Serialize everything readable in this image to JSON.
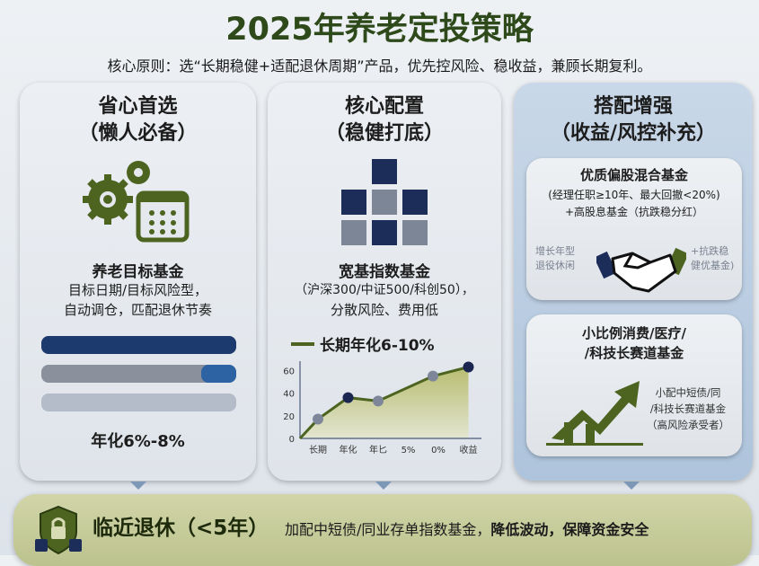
{
  "title": "2025年养老定投策略",
  "subtitle": "核心原则：选“长期稳健+适配退休周期”产品，优先控风险、稳收益，兼顾长期复利。",
  "panels": [
    {
      "heading": "省心首选",
      "subheading": "（懒人必备）",
      "name": "养老目标基金",
      "desc1": "目标日期/目标风险型，",
      "desc2": "自动调仓，匹配退休节奏",
      "bars": [
        {
          "fill": 1.0,
          "color": "#1d3a6e"
        },
        {
          "fill": 0.82,
          "color": "#2e63a3"
        },
        {
          "fill": 0,
          "color": "#b3bcc8"
        }
      ],
      "return": "年化6%-8%",
      "icons": [
        "gear-icon",
        "calendar-icon"
      ]
    },
    {
      "heading": "核心配置",
      "subheading": "（稳健打底）",
      "name": "宽基指数基金",
      "desc1": "（沪深300/中证500/科创50），",
      "desc2": "分散风险、费用低",
      "legend": "长期年化6-10%"
    },
    {
      "heading": "搭配增强",
      "subheading": "（收益/风控补充）",
      "card1": {
        "title": "优质偏股混合基金",
        "line1": "(经理任职≥10年、最大回撤<20%)",
        "line2": "+高股息基金（抗跌稳分红）",
        "left_note1": "增长年型",
        "left_note2": "退役休闲",
        "right_note1": "+抗跌稳",
        "right_note2": "健优基金)",
        "icon": "handshake-icon"
      },
      "card2": {
        "title1": "小比例消费/医疗/",
        "title2": "/科技长赛道基金",
        "note1": "小配中短债/同",
        "note2": "/科技长赛道基金",
        "note3": "（高风险承受者）",
        "icon": "growth-arrow-icon"
      }
    }
  ],
  "footer": {
    "title": "临近退休（<5年）",
    "text": "加配中短债/同业存单指数基金，",
    "bold": "降低波动，保障资金安全",
    "icon": "shield-lock-icon"
  },
  "colors": {
    "green": "#2e4a1b",
    "olive": "#5a6e23",
    "navy": "#1a2550"
  },
  "chart_data": {
    "type": "area",
    "categories": [
      "长期",
      "年化",
      "年匕",
      "5%",
      "0%",
      "收益"
    ],
    "values": [
      17,
      36,
      33,
      null,
      55,
      63
    ],
    "start_value": 0,
    "yticks": [
      0,
      20,
      40,
      60
    ],
    "ylim": [
      0,
      65
    ],
    "legend": "长期年化6-10%",
    "legend_placement": "top"
  }
}
